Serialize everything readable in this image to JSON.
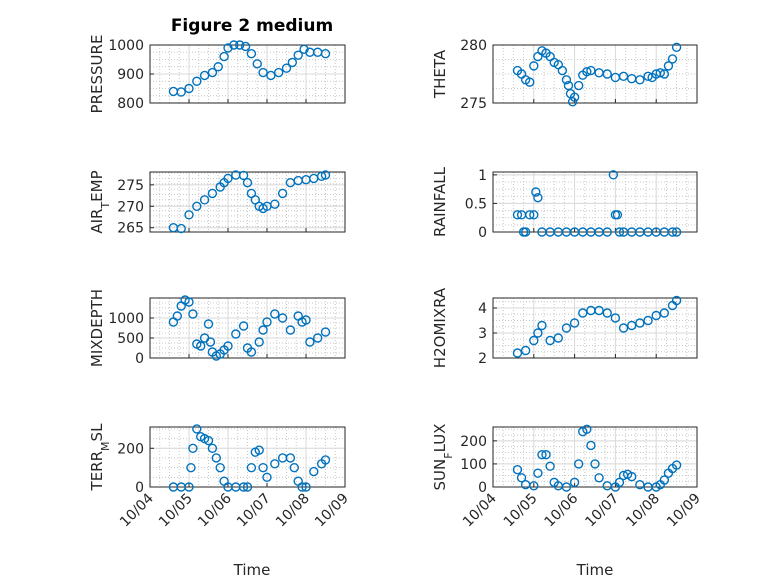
{
  "title": "Figure 2 medium",
  "xlabel": "Time",
  "x_ticks": [
    "10/04",
    "10/05",
    "10/06",
    "10/07",
    "10/08",
    "10/09"
  ],
  "marker_color": "#0072bd",
  "chart_data": [
    {
      "type": "scatter",
      "ylabel": "PRESSURE",
      "ylim": [
        800,
        1000
      ],
      "yticks": [
        800,
        900,
        1000
      ],
      "x": [
        4.6,
        4.8,
        5.0,
        5.2,
        5.4,
        5.6,
        5.75,
        5.9,
        6.0,
        6.15,
        6.3,
        6.45,
        6.6,
        6.75,
        6.9,
        7.1,
        7.3,
        7.5,
        7.65,
        7.8,
        7.95,
        8.1,
        8.3,
        8.5
      ],
      "y": [
        840,
        838,
        850,
        875,
        895,
        905,
        925,
        960,
        990,
        1000,
        1000,
        995,
        970,
        935,
        905,
        895,
        905,
        920,
        940,
        965,
        985,
        975,
        975,
        970
      ]
    },
    {
      "type": "scatter",
      "ylabel": "THETA",
      "ylim": [
        275,
        280
      ],
      "yticks": [
        275,
        280
      ],
      "x": [
        4.6,
        4.7,
        4.8,
        4.9,
        5.0,
        5.1,
        5.2,
        5.3,
        5.4,
        5.5,
        5.6,
        5.7,
        5.8,
        5.85,
        5.9,
        5.95,
        6.0,
        6.1,
        6.2,
        6.3,
        6.4,
        6.6,
        6.8,
        7.0,
        7.2,
        7.4,
        7.6,
        7.8,
        7.9,
        8.0,
        8.1,
        8.2,
        8.3,
        8.4,
        8.5
      ],
      "y": [
        277.8,
        277.5,
        277.0,
        276.8,
        278.2,
        279.0,
        279.5,
        279.3,
        279.0,
        278.5,
        278.3,
        277.8,
        277.0,
        276.5,
        275.8,
        275.1,
        275.5,
        276.5,
        277.4,
        277.7,
        277.8,
        277.6,
        277.5,
        277.2,
        277.3,
        277.1,
        277.0,
        277.3,
        277.2,
        277.5,
        277.6,
        277.5,
        278.2,
        278.8,
        279.8
      ]
    },
    {
      "type": "scatter",
      "ylabel": "AIR_TEMP",
      "ylim": [
        264,
        278
      ],
      "yticks": [
        265,
        270,
        275
      ],
      "x": [
        4.6,
        4.8,
        5.0,
        5.2,
        5.4,
        5.6,
        5.8,
        5.9,
        6.0,
        6.2,
        6.4,
        6.5,
        6.6,
        6.7,
        6.8,
        6.9,
        7.0,
        7.2,
        7.4,
        7.6,
        7.8,
        8.0,
        8.2,
        8.4,
        8.5
      ],
      "y": [
        265,
        264.8,
        268,
        270,
        271.5,
        273,
        274.5,
        275.5,
        276.5,
        277.3,
        277.2,
        275.5,
        273,
        271.5,
        270,
        269.5,
        270,
        270.5,
        273,
        275.5,
        276,
        276.2,
        276.5,
        277,
        277.3
      ]
    },
    {
      "type": "scatter",
      "ylabel": "RAINFALL",
      "ylim": [
        0,
        1.05
      ],
      "yticks": [
        0,
        0.5,
        1
      ],
      "x": [
        4.6,
        4.7,
        4.75,
        4.8,
        4.9,
        5.0,
        5.05,
        5.1,
        5.2,
        5.4,
        5.6,
        5.8,
        6.0,
        6.2,
        6.4,
        6.6,
        6.8,
        6.95,
        7.0,
        7.05,
        7.1,
        7.2,
        7.4,
        7.6,
        7.8,
        8.0,
        8.2,
        8.4,
        8.5
      ],
      "y": [
        0.3,
        0.3,
        0,
        0,
        0.3,
        0.3,
        0.7,
        0.6,
        0,
        0,
        0,
        0,
        0,
        0,
        0,
        0,
        0,
        1.0,
        0.3,
        0.3,
        0,
        0,
        0,
        0,
        0,
        0,
        0,
        0,
        0
      ]
    },
    {
      "type": "scatter",
      "ylabel": "MIXDEPTH",
      "ylim": [
        0,
        1500
      ],
      "yticks": [
        0,
        500,
        1000
      ],
      "x": [
        4.6,
        4.7,
        4.8,
        4.9,
        5.0,
        5.1,
        5.2,
        5.3,
        5.4,
        5.5,
        5.55,
        5.6,
        5.7,
        5.8,
        5.9,
        6.0,
        6.2,
        6.4,
        6.5,
        6.6,
        6.8,
        6.9,
        7.0,
        7.2,
        7.4,
        7.6,
        7.8,
        7.9,
        8.0,
        8.1,
        8.3,
        8.5
      ],
      "y": [
        900,
        1050,
        1300,
        1450,
        1400,
        1100,
        350,
        300,
        500,
        850,
        400,
        150,
        50,
        100,
        200,
        300,
        600,
        800,
        250,
        150,
        400,
        700,
        900,
        1100,
        1000,
        700,
        1050,
        900,
        950,
        400,
        500,
        650
      ]
    },
    {
      "type": "scatter",
      "ylabel": "H2OMIXRA",
      "ylim": [
        2,
        4.4
      ],
      "yticks": [
        2,
        3,
        4
      ],
      "x": [
        4.6,
        4.8,
        5.0,
        5.1,
        5.2,
        5.4,
        5.6,
        5.8,
        6.0,
        6.2,
        6.4,
        6.6,
        6.8,
        7.0,
        7.2,
        7.4,
        7.6,
        7.8,
        8.0,
        8.2,
        8.4,
        8.5
      ],
      "y": [
        2.2,
        2.3,
        2.7,
        3.0,
        3.3,
        2.7,
        2.8,
        3.2,
        3.4,
        3.8,
        3.9,
        3.9,
        3.8,
        3.6,
        3.2,
        3.3,
        3.4,
        3.5,
        3.7,
        3.8,
        4.1,
        4.3
      ]
    },
    {
      "type": "scatter",
      "ylabel": "TERR_MSL",
      "ylim": [
        0,
        310
      ],
      "yticks": [
        0,
        200
      ],
      "x": [
        4.6,
        4.8,
        5.0,
        5.05,
        5.1,
        5.2,
        5.3,
        5.4,
        5.5,
        5.6,
        5.7,
        5.8,
        5.9,
        6.0,
        6.2,
        6.4,
        6.5,
        6.6,
        6.7,
        6.8,
        6.9,
        7.0,
        7.2,
        7.4,
        7.6,
        7.7,
        7.8,
        7.9,
        8.0,
        8.2,
        8.4,
        8.5
      ],
      "y": [
        0,
        0,
        0,
        100,
        200,
        300,
        260,
        250,
        240,
        200,
        150,
        100,
        30,
        0,
        0,
        0,
        0,
        100,
        180,
        190,
        100,
        50,
        120,
        150,
        150,
        100,
        30,
        0,
        0,
        80,
        120,
        140
      ]
    },
    {
      "type": "scatter",
      "ylabel": "SUN_FLUX",
      "ylim": [
        0,
        260
      ],
      "yticks": [
        0,
        100,
        200
      ],
      "x": [
        4.6,
        4.7,
        4.8,
        5.0,
        5.1,
        5.2,
        5.3,
        5.4,
        5.5,
        5.6,
        5.8,
        6.0,
        6.1,
        6.2,
        6.3,
        6.4,
        6.5,
        6.6,
        6.8,
        7.0,
        7.1,
        7.2,
        7.3,
        7.4,
        7.6,
        7.8,
        8.0,
        8.1,
        8.2,
        8.3,
        8.4,
        8.5
      ],
      "y": [
        75,
        40,
        10,
        5,
        60,
        140,
        140,
        90,
        20,
        5,
        0,
        20,
        100,
        240,
        250,
        180,
        100,
        40,
        5,
        0,
        20,
        50,
        55,
        45,
        10,
        0,
        0,
        10,
        30,
        60,
        80,
        95
      ]
    }
  ]
}
